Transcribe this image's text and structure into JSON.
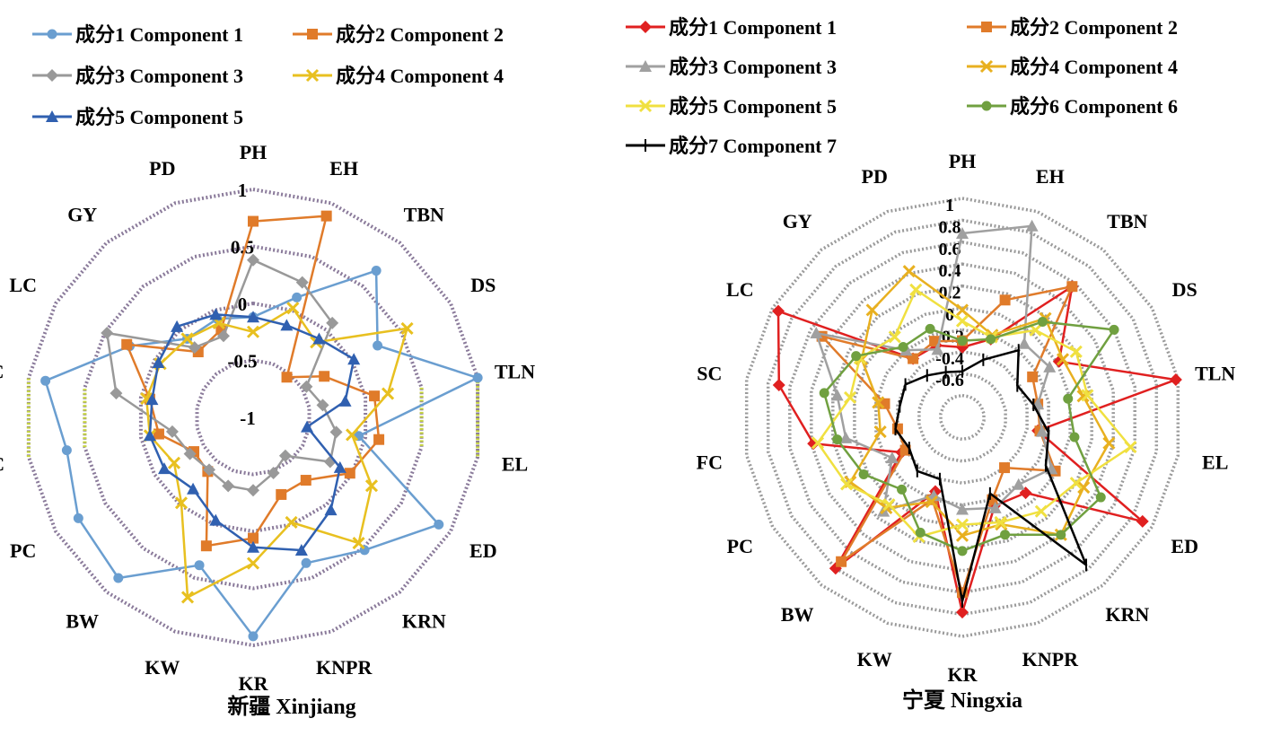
{
  "chart_data": [
    {
      "type": "radar",
      "title": "新疆 Xinjiang",
      "axes": [
        "PH",
        "EH",
        "TBN",
        "DS",
        "TLN",
        "EL",
        "ED",
        "KRN",
        "KNPR",
        "KR",
        "KW",
        "BW",
        "PC",
        "FC",
        "SC",
        "LC",
        "GY",
        "PD"
      ],
      "rlim": [
        -1,
        1
      ],
      "ring_values": [
        -1,
        -0.5,
        0,
        0.5,
        1
      ],
      "ring_labels": [
        "-1",
        "-0.5",
        "0",
        "0.5",
        "1"
      ],
      "legend_position": "top-left",
      "series": [
        {
          "name": "成分1 Component 1",
          "color": "#6a9ed0",
          "marker": "circle",
          "values": [
            -0.12,
            0.12,
            0.68,
            0.26,
            1.0,
            -0.06,
            0.88,
            0.52,
            0.36,
            0.92,
            0.38,
            0.84,
            0.77,
            0.66,
            0.85,
            0.25,
            -0.1,
            -0.08
          ]
        },
        {
          "name": "成分2 Component 2",
          "color": "#e07b2a",
          "marker": "square",
          "values": [
            0.72,
            0.88,
            -0.54,
            -0.28,
            0.08,
            0.12,
            -0.02,
            -0.28,
            -0.28,
            0.06,
            0.2,
            -0.38,
            -0.4,
            -0.16,
            -0.08,
            0.28,
            -0.25,
            -0.18
          ]
        },
        {
          "name": "成分3 Component 3",
          "color": "#999999",
          "marker": "diamond",
          "values": [
            0.38,
            0.26,
            0.08,
            -0.46,
            -0.38,
            -0.26,
            -0.22,
            -0.56,
            -0.48,
            -0.36,
            -0.36,
            -0.4,
            -0.36,
            -0.28,
            0.22,
            0.48,
            -0.2,
            -0.24
          ]
        },
        {
          "name": "成分4 Component 4",
          "color": "#e8c020",
          "marker": "x",
          "values": [
            -0.25,
            0.02,
            -0.14,
            0.56,
            0.2,
            -0.12,
            0.2,
            0.44,
            -0.02,
            0.28,
            0.68,
            -0.02,
            -0.2,
            -0.08,
            -0.05,
            -0.06,
            -0.1,
            -0.12
          ]
        },
        {
          "name": "成分5 Component 5",
          "color": "#3060b0",
          "marker": "triangle",
          "values": [
            -0.12,
            -0.14,
            -0.1,
            0.02,
            -0.18,
            -0.52,
            -0.12,
            0.06,
            0.24,
            0.14,
            -0.04,
            -0.18,
            -0.1,
            -0.08,
            -0.1,
            -0.04,
            0.04,
            -0.04
          ]
        }
      ]
    },
    {
      "type": "radar",
      "title": "宁夏 Ningxia",
      "axes": [
        "PH",
        "EH",
        "TBN",
        "DS",
        "TLN",
        "EL",
        "ED",
        "KRN",
        "KNPR",
        "KR",
        "KW",
        "BW",
        "PC",
        "FC",
        "SC",
        "LC",
        "GY",
        "PD"
      ],
      "rlim": [
        -1,
        1
      ],
      "ring_values": [
        -1,
        -0.8,
        -0.6,
        -0.4,
        -0.2,
        0,
        0.2,
        0.4,
        0.6,
        0.8,
        1
      ],
      "ring_labels": [
        "",
        "",
        "-0.6",
        "-0.4",
        "-0.2",
        "0",
        "0.2",
        "0.4",
        "0.6",
        "0.8",
        "1"
      ],
      "legend_position": "top",
      "series": [
        {
          "name": "成分1 Component 1",
          "color": "#e02020",
          "marker": "diamond",
          "values": [
            -0.36,
            -0.24,
            0.56,
            0.02,
            0.98,
            -0.3,
            0.9,
            -0.1,
            -0.14,
            0.78,
            -0.28,
            0.8,
            -0.36,
            0.38,
            0.7,
            0.94,
            -0.3,
            -0.3
          ]
        },
        {
          "name": "成分2 Component 2",
          "color": "#e07b2a",
          "marker": "square",
          "values": [
            -0.3,
            0.14,
            0.56,
            -0.26,
            -0.3,
            -0.28,
            -0.02,
            -0.4,
            -0.2,
            0.6,
            -0.2,
            0.72,
            -0.4,
            -0.4,
            -0.28,
            0.48,
            -0.3,
            -0.26
          ]
        },
        {
          "name": "成分3 Component 3",
          "color": "#a0a0a0",
          "marker": "triangle",
          "values": [
            0.68,
            0.86,
            -0.12,
            -0.08,
            -0.3,
            -0.26,
            -0.06,
            -0.2,
            -0.12,
            -0.16,
            -0.24,
            0.12,
            -0.26,
            0.08,
            0.16,
            0.54,
            -0.2,
            -0.34
          ]
        },
        {
          "name": "成分4 Component 4",
          "color": "#e8b020",
          "marker": "x",
          "values": [
            -0.02,
            -0.2,
            0.18,
            0.06,
            0.12,
            0.36,
            0.28,
            0.4,
            0.04,
            0.08,
            -0.18,
            0.08,
            0.18,
            -0.24,
            -0.22,
            0.06,
            0.28,
            0.42
          ]
        },
        {
          "name": "成分5 Component 5",
          "color": "#f0e040",
          "marker": "x",
          "values": [
            -0.12,
            -0.22,
            0.04,
            0.2,
            0.16,
            0.56,
            0.2,
            0.12,
            0.02,
            -0.02,
            0.16,
            0.04,
            0.22,
            0.34,
            0.04,
            0.08,
            -0.04,
            0.24
          ]
        },
        {
          "name": "成分6 Component 6",
          "color": "#70a040",
          "marker": "circle",
          "values": [
            -0.3,
            -0.24,
            0.14,
            0.6,
            -0.02,
            0.04,
            0.46,
            0.4,
            0.14,
            0.22,
            0.12,
            -0.14,
            0.04,
            0.16,
            0.28,
            0.12,
            -0.16,
            -0.14
          ]
        },
        {
          "name": "成分7 Component 7",
          "color": "#000000",
          "marker": "plus",
          "values": [
            -0.58,
            -0.44,
            -0.2,
            -0.42,
            -0.34,
            -0.2,
            -0.12,
            0.76,
            -0.26,
            0.68,
            -0.4,
            -0.36,
            -0.44,
            -0.38,
            -0.42,
            -0.4,
            -0.5,
            -0.56
          ]
        }
      ]
    }
  ]
}
